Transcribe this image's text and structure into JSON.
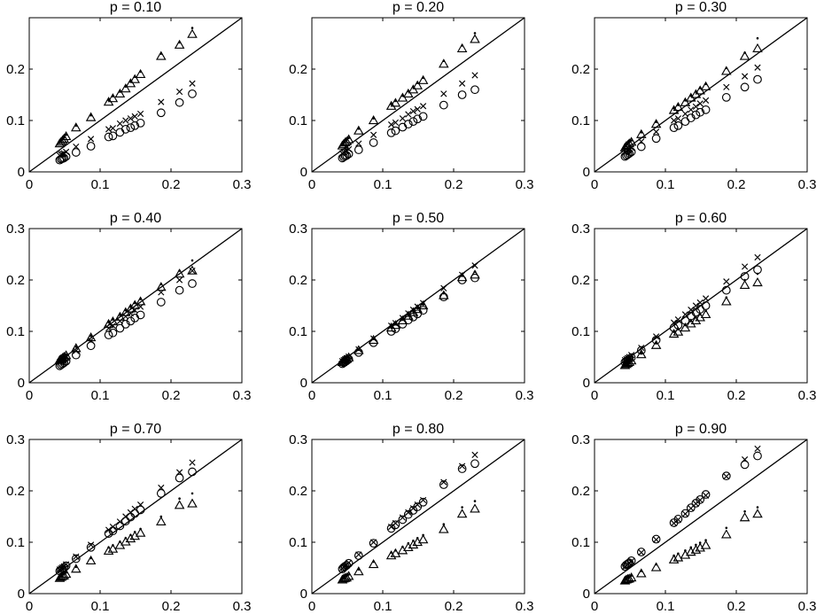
{
  "chart_data": {
    "type": "scatter",
    "xlim": [
      0,
      0.3
    ],
    "ylim": [
      0,
      0.3
    ],
    "xticks": [
      "0",
      "0.1",
      "0.2",
      "0.3"
    ],
    "yticks_first_row": [
      "0",
      "0.1",
      "0.2"
    ],
    "yticks": [
      "0",
      "0.1",
      "0.2",
      "0.3"
    ],
    "x": [
      0.043,
      0.045,
      0.047,
      0.049,
      0.052,
      0.066,
      0.087,
      0.112,
      0.118,
      0.128,
      0.136,
      0.143,
      0.149,
      0.157,
      0.186,
      0.212,
      0.23
    ],
    "reference_line": "y = x",
    "grid": false,
    "legend": "none",
    "panels": [
      {
        "title": "p = 0.10",
        "series": [
          {
            "marker": "x",
            "values": [
              0.032,
              0.034,
              0.035,
              0.036,
              0.039,
              0.049,
              0.064,
              0.083,
              0.085,
              0.094,
              0.1,
              0.104,
              0.108,
              0.113,
              0.136,
              0.156,
              0.172
            ]
          },
          {
            "marker": "o",
            "values": [
              0.023,
              0.025,
              0.026,
              0.027,
              0.03,
              0.038,
              0.05,
              0.068,
              0.07,
              0.077,
              0.083,
              0.086,
              0.09,
              0.095,
              0.115,
              0.135,
              0.152
            ]
          },
          {
            "marker": "triangle",
            "values": [
              0.055,
              0.058,
              0.061,
              0.064,
              0.069,
              0.086,
              0.106,
              0.136,
              0.143,
              0.152,
              0.162,
              0.172,
              0.18,
              0.19,
              0.225,
              0.247,
              0.268
            ]
          },
          {
            "marker": "dot",
            "values": [
              0.058,
              0.061,
              0.064,
              0.067,
              0.072,
              0.09,
              0.11,
              0.14,
              0.147,
              0.156,
              0.166,
              0.176,
              0.185,
              0.195,
              0.23,
              0.252,
              0.28
            ]
          }
        ]
      },
      {
        "title": "p = 0.20",
        "series": [
          {
            "marker": "x",
            "values": [
              0.036,
              0.038,
              0.04,
              0.041,
              0.044,
              0.055,
              0.072,
              0.092,
              0.096,
              0.104,
              0.112,
              0.118,
              0.122,
              0.128,
              0.152,
              0.172,
              0.188
            ]
          },
          {
            "marker": "o",
            "values": [
              0.027,
              0.029,
              0.031,
              0.032,
              0.035,
              0.043,
              0.057,
              0.076,
              0.08,
              0.087,
              0.093,
              0.098,
              0.103,
              0.108,
              0.13,
              0.15,
              0.16
            ]
          },
          {
            "marker": "triangle",
            "values": [
              0.051,
              0.054,
              0.057,
              0.059,
              0.063,
              0.08,
              0.1,
              0.128,
              0.134,
              0.144,
              0.152,
              0.16,
              0.168,
              0.178,
              0.21,
              0.24,
              0.258
            ]
          },
          {
            "marker": "dot",
            "values": [
              0.054,
              0.057,
              0.06,
              0.062,
              0.066,
              0.084,
              0.104,
              0.132,
              0.138,
              0.148,
              0.157,
              0.165,
              0.173,
              0.183,
              0.216,
              0.246,
              0.27
            ]
          }
        ]
      },
      {
        "title": "p = 0.30",
        "series": [
          {
            "marker": "x",
            "values": [
              0.038,
              0.04,
              0.042,
              0.044,
              0.047,
              0.059,
              0.078,
              0.1,
              0.104,
              0.113,
              0.121,
              0.127,
              0.133,
              0.139,
              0.165,
              0.186,
              0.203
            ]
          },
          {
            "marker": "o",
            "values": [
              0.03,
              0.032,
              0.034,
              0.036,
              0.039,
              0.049,
              0.065,
              0.086,
              0.09,
              0.098,
              0.105,
              0.111,
              0.116,
              0.121,
              0.145,
              0.165,
              0.18
            ]
          },
          {
            "marker": "triangle",
            "values": [
              0.047,
              0.05,
              0.052,
              0.055,
              0.058,
              0.073,
              0.093,
              0.12,
              0.126,
              0.135,
              0.144,
              0.151,
              0.158,
              0.166,
              0.196,
              0.225,
              0.24
            ]
          },
          {
            "marker": "dot",
            "values": [
              0.05,
              0.053,
              0.055,
              0.058,
              0.061,
              0.077,
              0.097,
              0.124,
              0.13,
              0.139,
              0.148,
              0.156,
              0.163,
              0.171,
              0.202,
              0.232,
              0.26
            ]
          }
        ]
      },
      {
        "title": "p = 0.40",
        "series": [
          {
            "marker": "x",
            "values": [
              0.04,
              0.042,
              0.044,
              0.046,
              0.049,
              0.062,
              0.082,
              0.106,
              0.111,
              0.12,
              0.129,
              0.135,
              0.141,
              0.148,
              0.176,
              0.2,
              0.218
            ]
          },
          {
            "marker": "o",
            "values": [
              0.033,
              0.035,
              0.037,
              0.039,
              0.042,
              0.054,
              0.072,
              0.093,
              0.097,
              0.106,
              0.114,
              0.12,
              0.126,
              0.132,
              0.157,
              0.18,
              0.193
            ]
          },
          {
            "marker": "triangle",
            "values": [
              0.044,
              0.046,
              0.048,
              0.05,
              0.053,
              0.067,
              0.088,
              0.114,
              0.119,
              0.128,
              0.137,
              0.144,
              0.151,
              0.158,
              0.186,
              0.212,
              0.218
            ]
          },
          {
            "marker": "dot",
            "values": [
              0.046,
              0.048,
              0.05,
              0.052,
              0.055,
              0.07,
              0.091,
              0.118,
              0.123,
              0.132,
              0.141,
              0.148,
              0.155,
              0.163,
              0.192,
              0.218,
              0.238
            ]
          }
        ]
      },
      {
        "title": "p = 0.50",
        "series": [
          {
            "marker": "x",
            "values": [
              0.042,
              0.044,
              0.046,
              0.048,
              0.051,
              0.065,
              0.086,
              0.111,
              0.116,
              0.126,
              0.135,
              0.142,
              0.148,
              0.155,
              0.184,
              0.21,
              0.228
            ]
          },
          {
            "marker": "o",
            "values": [
              0.037,
              0.039,
              0.041,
              0.043,
              0.046,
              0.059,
              0.078,
              0.1,
              0.105,
              0.114,
              0.122,
              0.128,
              0.134,
              0.141,
              0.167,
              0.2,
              0.204
            ]
          },
          {
            "marker": "triangle",
            "values": [
              0.04,
              0.042,
              0.044,
              0.046,
              0.049,
              0.063,
              0.083,
              0.107,
              0.112,
              0.121,
              0.13,
              0.137,
              0.143,
              0.15,
              0.17,
              0.205,
              0.21
            ]
          },
          {
            "marker": "dot",
            "values": [
              0.041,
              0.043,
              0.045,
              0.047,
              0.05,
              0.064,
              0.085,
              0.109,
              0.114,
              0.123,
              0.132,
              0.139,
              0.145,
              0.152,
              0.174,
              0.208,
              0.216
            ]
          }
        ]
      },
      {
        "title": "p = 0.60",
        "series": [
          {
            "marker": "x",
            "values": [
              0.044,
              0.046,
              0.048,
              0.05,
              0.054,
              0.068,
              0.09,
              0.117,
              0.123,
              0.133,
              0.142,
              0.15,
              0.156,
              0.164,
              0.197,
              0.226,
              0.244
            ]
          },
          {
            "marker": "o",
            "values": [
              0.04,
              0.042,
              0.044,
              0.046,
              0.049,
              0.063,
              0.083,
              0.107,
              0.112,
              0.121,
              0.13,
              0.137,
              0.143,
              0.15,
              0.18,
              0.207,
              0.22
            ]
          },
          {
            "marker": "triangle",
            "values": [
              0.034,
              0.036,
              0.038,
              0.04,
              0.043,
              0.055,
              0.073,
              0.095,
              0.099,
              0.107,
              0.115,
              0.121,
              0.127,
              0.133,
              0.158,
              0.19,
              0.195
            ]
          },
          {
            "marker": "dot",
            "values": [
              0.036,
              0.038,
              0.04,
              0.042,
              0.045,
              0.058,
              0.077,
              0.099,
              0.104,
              0.112,
              0.12,
              0.127,
              0.133,
              0.14,
              0.166,
              0.2,
              0.212
            ]
          }
        ]
      },
      {
        "title": "p = 0.70",
        "series": [
          {
            "marker": "x",
            "values": [
              0.047,
              0.049,
              0.051,
              0.053,
              0.057,
              0.072,
              0.095,
              0.124,
              0.13,
              0.14,
              0.15,
              0.158,
              0.165,
              0.173,
              0.206,
              0.236,
              0.255
            ]
          },
          {
            "marker": "o",
            "values": [
              0.044,
              0.046,
              0.048,
              0.05,
              0.054,
              0.068,
              0.09,
              0.117,
              0.122,
              0.132,
              0.141,
              0.149,
              0.156,
              0.163,
              0.195,
              0.225,
              0.237
            ]
          },
          {
            "marker": "triangle",
            "values": [
              0.03,
              0.032,
              0.034,
              0.035,
              0.038,
              0.048,
              0.064,
              0.083,
              0.087,
              0.094,
              0.101,
              0.107,
              0.112,
              0.118,
              0.14,
              0.172,
              0.175
            ]
          },
          {
            "marker": "dot",
            "values": [
              0.033,
              0.035,
              0.037,
              0.038,
              0.041,
              0.052,
              0.069,
              0.09,
              0.094,
              0.101,
              0.108,
              0.114,
              0.12,
              0.126,
              0.15,
              0.185,
              0.195
            ]
          }
        ]
      },
      {
        "title": "p = 0.80",
        "series": [
          {
            "marker": "x",
            "values": [
              0.049,
              0.052,
              0.054,
              0.056,
              0.06,
              0.076,
              0.1,
              0.13,
              0.137,
              0.148,
              0.158,
              0.166,
              0.173,
              0.182,
              0.217,
              0.248,
              0.27
            ]
          },
          {
            "marker": "o",
            "values": [
              0.048,
              0.051,
              0.053,
              0.055,
              0.059,
              0.074,
              0.098,
              0.127,
              0.134,
              0.144,
              0.154,
              0.162,
              0.169,
              0.178,
              0.212,
              0.243,
              0.253
            ]
          },
          {
            "marker": "triangle",
            "values": [
              0.027,
              0.029,
              0.03,
              0.031,
              0.034,
              0.043,
              0.057,
              0.074,
              0.078,
              0.084,
              0.09,
              0.095,
              0.1,
              0.105,
              0.125,
              0.155,
              0.165
            ]
          },
          {
            "marker": "dot",
            "values": [
              0.03,
              0.032,
              0.033,
              0.035,
              0.037,
              0.047,
              0.062,
              0.08,
              0.084,
              0.091,
              0.098,
              0.103,
              0.108,
              0.114,
              0.135,
              0.168,
              0.18
            ]
          }
        ]
      },
      {
        "title": "p = 0.90",
        "series": [
          {
            "marker": "x",
            "values": [
              0.052,
              0.055,
              0.057,
              0.059,
              0.063,
              0.08,
              0.105,
              0.137,
              0.144,
              0.155,
              0.166,
              0.175,
              0.182,
              0.191,
              0.228,
              0.261,
              0.282
            ]
          },
          {
            "marker": "o",
            "values": [
              0.053,
              0.056,
              0.058,
              0.06,
              0.064,
              0.081,
              0.106,
              0.138,
              0.145,
              0.156,
              0.167,
              0.176,
              0.183,
              0.193,
              0.229,
              0.251,
              0.268
            ]
          },
          {
            "marker": "triangle",
            "values": [
              0.025,
              0.027,
              0.028,
              0.029,
              0.031,
              0.039,
              0.051,
              0.066,
              0.07,
              0.075,
              0.081,
              0.085,
              0.089,
              0.094,
              0.115,
              0.148,
              0.155
            ]
          },
          {
            "marker": "dot",
            "values": [
              0.028,
              0.03,
              0.031,
              0.032,
              0.035,
              0.044,
              0.057,
              0.074,
              0.078,
              0.084,
              0.09,
              0.095,
              0.099,
              0.104,
              0.128,
              0.16,
              0.168
            ]
          }
        ]
      }
    ]
  }
}
